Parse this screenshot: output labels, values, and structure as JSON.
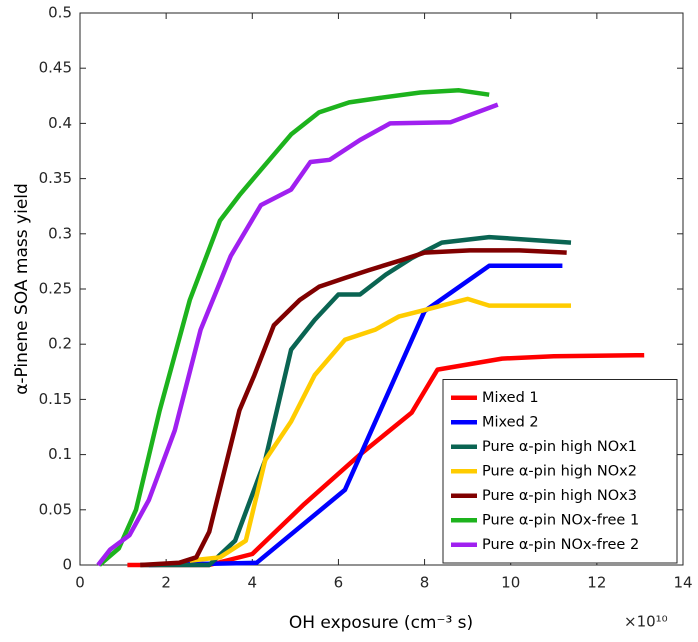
{
  "chart_data": {
    "type": "line",
    "xlabel": "OH exposure (cm⁻³ s)",
    "ylabel": "α-Pinene SOA mass yield",
    "x_multiplier": "×10¹⁰",
    "xlim": [
      0,
      14
    ],
    "xticks": [
      0,
      2,
      4,
      6,
      8,
      10,
      12,
      14
    ],
    "ylim": [
      0,
      0.5
    ],
    "yticks": [
      0,
      0.05,
      0.1,
      0.15,
      0.2,
      0.25,
      0.3,
      0.35,
      0.4,
      0.45,
      0.5
    ],
    "grid": false,
    "legend_position": "lower-right",
    "series": [
      {
        "name": "Mixed 1",
        "color": "#ff0000",
        "x": [
          1.1,
          3,
          4,
          5.2,
          6.5,
          7.7,
          8.3,
          9.8,
          11,
          13.1
        ],
        "values": [
          0,
          0,
          0.01,
          0.055,
          0.1,
          0.138,
          0.177,
          0.187,
          0.189,
          0.19
        ]
      },
      {
        "name": "Mixed 2",
        "color": "#0000ff",
        "x": [
          1.6,
          4.1,
          6.15,
          8,
          9.5,
          11.2
        ],
        "values": [
          0,
          0.002,
          0.068,
          0.23,
          0.271,
          0.271
        ]
      },
      {
        "name": "Pure α-pin  high NOx1",
        "color": "#0a6452",
        "x": [
          1.4,
          3,
          3.6,
          4.3,
          4.9,
          5.45,
          6.0,
          6.5,
          7.1,
          7.7,
          8.4,
          9.5,
          11.4
        ],
        "values": [
          0,
          0,
          0.022,
          0.095,
          0.195,
          0.222,
          0.245,
          0.245,
          0.263,
          0.278,
          0.292,
          0.297,
          0.292
        ]
      },
      {
        "name": "Pure α-pin  high NOx2",
        "color": "#ffcc00",
        "x": [
          2.55,
          3.25,
          3.85,
          4.3,
          4.9,
          5.45,
          6.15,
          6.85,
          7.4,
          8.1,
          9.0,
          9.5,
          11.4
        ],
        "values": [
          0.004,
          0.007,
          0.022,
          0.095,
          0.13,
          0.172,
          0.204,
          0.213,
          0.225,
          0.232,
          0.241,
          0.235,
          0.235
        ]
      },
      {
        "name": "Pure α-pin  high NOx3",
        "color": "#800000",
        "x": [
          1.4,
          2.3,
          2.7,
          3.0,
          3.7,
          4.05,
          4.5,
          5.1,
          5.55,
          6.15,
          6.7,
          7.45,
          8,
          9.05,
          10.2,
          11.3
        ],
        "values": [
          0,
          0.002,
          0.007,
          0.03,
          0.14,
          0.172,
          0.217,
          0.24,
          0.252,
          0.26,
          0.267,
          0.276,
          0.283,
          0.285,
          0.285,
          0.283
        ]
      },
      {
        "name": "Pure α-pin NOx-free 1",
        "color": "#1db31d",
        "x": [
          0.45,
          0.9,
          1.3,
          1.85,
          2.55,
          3.25,
          3.7,
          4.2,
          4.9,
          5.55,
          6.25,
          6.95,
          7.9,
          8.8,
          9.5
        ],
        "values": [
          0,
          0.015,
          0.05,
          0.14,
          0.24,
          0.312,
          0.335,
          0.358,
          0.39,
          0.41,
          0.419,
          0.423,
          0.428,
          0.43,
          0.426
        ]
      },
      {
        "name": "Pure α-pin NOx-free 2",
        "color": "#a020f0",
        "x": [
          0.42,
          0.7,
          1.15,
          1.6,
          2.2,
          2.8,
          3.5,
          4.2,
          4.9,
          5.35,
          5.8,
          6.5,
          7.2,
          8.6,
          9.7
        ],
        "values": [
          0,
          0.014,
          0.027,
          0.059,
          0.122,
          0.213,
          0.28,
          0.326,
          0.34,
          0.365,
          0.367,
          0.385,
          0.4,
          0.401,
          0.417
        ]
      }
    ]
  }
}
